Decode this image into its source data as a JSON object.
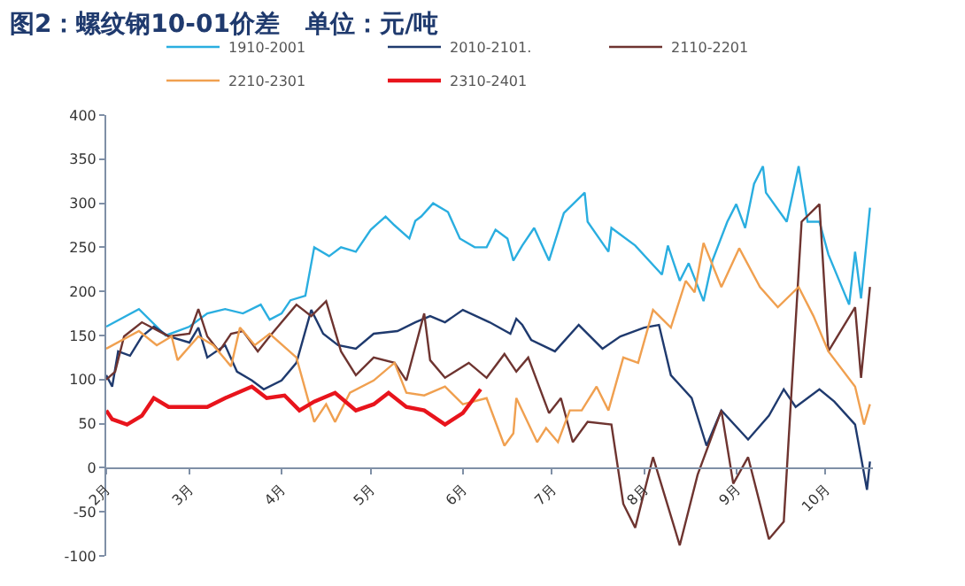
{
  "chart_data": {
    "type": "line",
    "title": "图2：螺纹钢10-01价差   单位：元/吨",
    "xlim": [
      "--02-01",
      "--10-17"
    ],
    "xticks": [
      {
        "value": "--02-01",
        "label": "2月"
      },
      {
        "value": "--03-01",
        "label": "3月"
      },
      {
        "value": "--04-01",
        "label": "4月"
      },
      {
        "value": "--05-01",
        "label": "5月"
      },
      {
        "value": "--06-01",
        "label": "6月"
      },
      {
        "value": "--07-01",
        "label": "7月"
      },
      {
        "value": "--08-01",
        "label": "8月"
      },
      {
        "value": "--09-01",
        "label": "9月"
      },
      {
        "value": "--10-01",
        "label": "10月"
      }
    ],
    "ylim": [
      -100,
      400
    ],
    "yticks": [
      -100,
      -50,
      0,
      50,
      100,
      150,
      200,
      250,
      300,
      350,
      400
    ],
    "grid": false,
    "legend": "top",
    "marker": "none",
    "line_style": "solid",
    "series": [
      {
        "name": "1910-2001",
        "color": "#2aaee0",
        "x": [
          "--02-01",
          "--02-12",
          "--02-21",
          "--03-01",
          "--03-07",
          "--03-13",
          "--03-19",
          "--03-25",
          "--03-28",
          "--04-01",
          "--04-04",
          "--04-09",
          "--04-12",
          "--04-17",
          "--04-21",
          "--04-26",
          "--05-01",
          "--05-06",
          "--05-09",
          "--05-14",
          "--05-16",
          "--05-18",
          "--05-22",
          "--05-27",
          "--05-31",
          "--06-05",
          "--06-09",
          "--06-12",
          "--06-16",
          "--06-18",
          "--06-21",
          "--06-25",
          "--06-30",
          "--07-05",
          "--07-12",
          "--07-13",
          "--07-20",
          "--07-21",
          "--07-29",
          "--08-07",
          "--08-09",
          "--08-13",
          "--08-16",
          "--08-21",
          "--08-24",
          "--08-29",
          "--09-01",
          "--09-04",
          "--09-07",
          "--09-10",
          "--09-11",
          "--09-18",
          "--09-22",
          "--09-25",
          "--09-29",
          "--10-02",
          "--10-09",
          "--10-11",
          "--10-13",
          "--10-16"
        ],
        "values": [
          160,
          180,
          150,
          160,
          175,
          180,
          175,
          185,
          168,
          175,
          190,
          195,
          250,
          240,
          250,
          245,
          270,
          285,
          275,
          260,
          280,
          285,
          300,
          290,
          260,
          250,
          250,
          270,
          260,
          235,
          252,
          272,
          235,
          289,
          312,
          279,
          245,
          272,
          252,
          219,
          252,
          212,
          232,
          189,
          235,
          279,
          299,
          272,
          322,
          342,
          312,
          279,
          342,
          279,
          279,
          242,
          185,
          245,
          192,
          295
        ]
      },
      {
        "name": "2010-2101.",
        "color": "#1f3a6e",
        "x": [
          "--02-01",
          "--02-03",
          "--02-05",
          "--02-09",
          "--02-13",
          "--02-17",
          "--02-22",
          "--03-01",
          "--03-04",
          "--03-07",
          "--03-13",
          "--03-17",
          "--03-22",
          "--03-26",
          "--04-01",
          "--04-06",
          "--04-11",
          "--04-15",
          "--04-20",
          "--04-26",
          "--05-02",
          "--05-10",
          "--05-16",
          "--05-21",
          "--05-26",
          "--06-01",
          "--06-10",
          "--06-17",
          "--06-19",
          "--06-21",
          "--06-24",
          "--07-02",
          "--07-10",
          "--07-18",
          "--07-24",
          "--08-01",
          "--08-06",
          "--08-10",
          "--08-17",
          "--08-22",
          "--08-27",
          "--09-05",
          "--09-12",
          "--09-17",
          "--09-21",
          "--09-29",
          "--10-04",
          "--10-11",
          "--10-15",
          "--10-16"
        ],
        "values": [
          105,
          92,
          132,
          127,
          149,
          160,
          149,
          142,
          159,
          125,
          139,
          109,
          99,
          89,
          99,
          119,
          179,
          152,
          139,
          135,
          152,
          155,
          165,
          172,
          165,
          179,
          165,
          152,
          169,
          162,
          145,
          132,
          162,
          135,
          149,
          159,
          162,
          105,
          79,
          25,
          65,
          32,
          59,
          89,
          69,
          89,
          75,
          49,
          -25,
          7
        ]
      },
      {
        "name": "2110-2201",
        "color": "#6e3430",
        "x": [
          "--02-01",
          "--02-04",
          "--02-07",
          "--02-13",
          "--02-22",
          "--03-01",
          "--03-04",
          "--03-07",
          "--03-11",
          "--03-15",
          "--03-19",
          "--03-24",
          "--03-28",
          "--04-06",
          "--04-11",
          "--04-16",
          "--04-21",
          "--04-26",
          "--05-02",
          "--05-09",
          "--05-13",
          "--05-19",
          "--05-21",
          "--05-26",
          "--06-03",
          "--06-09",
          "--06-15",
          "--06-19",
          "--06-23",
          "--06-30",
          "--07-04",
          "--07-08",
          "--07-13",
          "--07-21",
          "--07-25",
          "--07-29",
          "--08-04",
          "--08-13",
          "--08-19",
          "--08-27",
          "--08-31",
          "--09-05",
          "--09-12",
          "--09-17",
          "--09-23",
          "--09-29",
          "--10-02",
          "--10-11",
          "--10-13",
          "--10-16"
        ],
        "values": [
          100,
          109,
          149,
          165,
          149,
          152,
          180,
          149,
          132,
          152,
          155,
          132,
          149,
          185,
          172,
          189,
          132,
          105,
          125,
          119,
          99,
          175,
          122,
          102,
          119,
          102,
          129,
          109,
          125,
          62,
          79,
          29,
          52,
          49,
          -41,
          -68,
          12,
          -88,
          -8,
          65,
          -18,
          12,
          -81,
          -61,
          279,
          299,
          132,
          182,
          102,
          205
        ]
      },
      {
        "name": "2210-2301",
        "color": "#f0a050",
        "x": [
          "--02-01",
          "--02-12",
          "--02-18",
          "--02-23",
          "--02-25",
          "--03-04",
          "--03-09",
          "--03-15",
          "--03-18",
          "--03-23",
          "--03-28",
          "--04-06",
          "--04-12",
          "--04-16",
          "--04-19",
          "--04-24",
          "--05-02",
          "--05-09",
          "--05-13",
          "--05-19",
          "--05-26",
          "--06-01",
          "--06-09",
          "--06-15",
          "--06-18",
          "--06-19",
          "--06-26",
          "--06-29",
          "--07-03",
          "--07-07",
          "--07-11",
          "--07-16",
          "--07-20",
          "--07-25",
          "--07-30",
          "--08-04",
          "--08-10",
          "--08-15",
          "--08-18",
          "--08-21",
          "--08-27",
          "--09-02",
          "--09-09",
          "--09-15",
          "--09-22",
          "--09-27",
          "--10-02",
          "--10-11",
          "--10-14",
          "--10-16"
        ],
        "values": [
          135,
          155,
          139,
          149,
          122,
          149,
          139,
          115,
          159,
          139,
          152,
          125,
          52,
          72,
          52,
          85,
          99,
          119,
          85,
          82,
          92,
          72,
          79,
          25,
          39,
          79,
          29,
          45,
          29,
          65,
          65,
          92,
          65,
          125,
          119,
          179,
          159,
          212,
          199,
          255,
          205,
          249,
          205,
          182,
          205,
          172,
          132,
          92,
          49,
          72
        ]
      },
      {
        "name": "2310-2401",
        "color": "#e8141c",
        "x": [
          "--02-01",
          "--02-03",
          "--02-08",
          "--02-13",
          "--02-17",
          "--02-22",
          "--03-01",
          "--03-07",
          "--03-13",
          "--03-22",
          "--03-27",
          "--04-02",
          "--04-07",
          "--04-12",
          "--04-19",
          "--04-26",
          "--05-02",
          "--05-07",
          "--05-13",
          "--05-19",
          "--05-26",
          "--06-01",
          "--06-07"
        ],
        "values": [
          65,
          55,
          49,
          59,
          79,
          69,
          69,
          69,
          79,
          92,
          79,
          82,
          65,
          75,
          85,
          65,
          72,
          85,
          69,
          65,
          49,
          62,
          89
        ]
      }
    ]
  }
}
